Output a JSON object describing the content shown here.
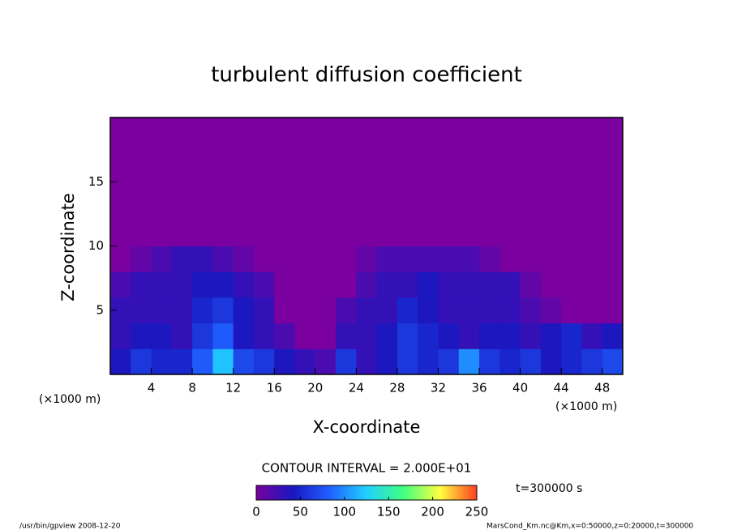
{
  "chart_data": {
    "type": "heatmap",
    "title": "turbulent diffusion coefficient",
    "x_label": "X-coordinate",
    "y_label": "Z-coordinate",
    "x_unit": "(×1000 m)",
    "y_unit": "(×1000 m)",
    "contour_note": "CONTOUR INTERVAL = 2.000E+01",
    "time_note": "t=300000 s",
    "footer_left": "/usr/bin/gpview  2008-12-20",
    "footer_right": "MarsCond_Km.nc@Km,x=0:50000,z=0:20000,t=300000",
    "x": [
      1,
      3,
      5,
      7,
      9,
      11,
      13,
      15,
      17,
      19,
      21,
      23,
      25,
      27,
      29,
      31,
      33,
      35,
      37,
      39,
      41,
      43,
      45,
      47,
      49
    ],
    "y": [
      1,
      3,
      5,
      7,
      9,
      11,
      13,
      15,
      17,
      19
    ],
    "values": [
      [
        40,
        60,
        50,
        50,
        80,
        120,
        70,
        60,
        40,
        30,
        20,
        60,
        30,
        40,
        60,
        50,
        60,
        100,
        60,
        50,
        60,
        40,
        50,
        60,
        70
      ],
      [
        30,
        40,
        40,
        30,
        60,
        80,
        40,
        30,
        20,
        0,
        0,
        30,
        30,
        40,
        60,
        50,
        40,
        30,
        40,
        40,
        30,
        40,
        50,
        30,
        40
      ],
      [
        30,
        30,
        30,
        30,
        50,
        60,
        40,
        30,
        0,
        0,
        0,
        20,
        30,
        30,
        50,
        40,
        30,
        30,
        30,
        30,
        20,
        10,
        0,
        0,
        0
      ],
      [
        20,
        30,
        30,
        30,
        40,
        40,
        30,
        20,
        0,
        0,
        0,
        0,
        20,
        30,
        30,
        40,
        30,
        30,
        30,
        30,
        10,
        0,
        0,
        0,
        0
      ],
      [
        0,
        10,
        20,
        30,
        30,
        20,
        10,
        0,
        0,
        0,
        0,
        0,
        10,
        20,
        20,
        20,
        20,
        20,
        10,
        0,
        0,
        0,
        0,
        0,
        0
      ],
      [
        0,
        0,
        0,
        0,
        0,
        0,
        0,
        0,
        0,
        0,
        0,
        0,
        0,
        0,
        0,
        0,
        0,
        0,
        0,
        0,
        0,
        0,
        0,
        0,
        0
      ],
      [
        0,
        0,
        0,
        0,
        0,
        0,
        0,
        0,
        0,
        0,
        0,
        0,
        0,
        0,
        0,
        0,
        0,
        0,
        0,
        0,
        0,
        0,
        0,
        0,
        0
      ],
      [
        0,
        0,
        0,
        0,
        0,
        0,
        0,
        0,
        0,
        0,
        0,
        0,
        0,
        0,
        0,
        0,
        0,
        0,
        0,
        0,
        0,
        0,
        0,
        0,
        0
      ],
      [
        0,
        0,
        0,
        0,
        0,
        0,
        0,
        0,
        0,
        0,
        0,
        0,
        0,
        0,
        0,
        0,
        0,
        0,
        0,
        0,
        0,
        0,
        0,
        0,
        0
      ],
      [
        0,
        0,
        0,
        0,
        0,
        0,
        0,
        0,
        0,
        0,
        0,
        0,
        0,
        0,
        0,
        0,
        0,
        0,
        0,
        0,
        0,
        0,
        0,
        0,
        0
      ]
    ],
    "xlim": [
      0,
      50
    ],
    "ylim": [
      0,
      20
    ],
    "xticks": [
      4,
      8,
      12,
      16,
      20,
      24,
      28,
      32,
      36,
      40,
      44,
      48
    ],
    "yticks": [
      5,
      10,
      15
    ],
    "clim": [
      0,
      250
    ],
    "cticks": [
      0,
      50,
      100,
      150,
      200,
      250
    ],
    "colormap": [
      "#7a00a0",
      "#1818c0",
      "#2060ff",
      "#20d0ff",
      "#40ff80",
      "#ffff40",
      "#ff4020"
    ]
  }
}
